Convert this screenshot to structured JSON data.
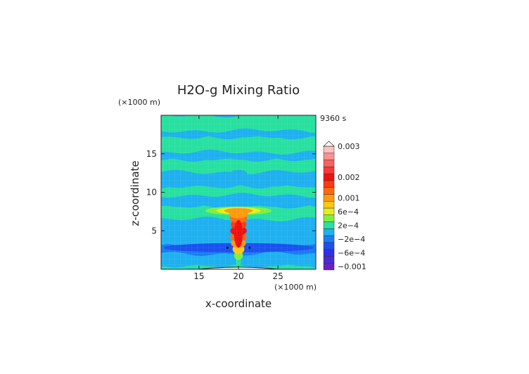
{
  "chart_data": {
    "type": "heatmap",
    "title": "H2O-g Mixing Ratio",
    "xlabel": "x-coordinate",
    "ylabel": "z-coordinate",
    "x_unit": "(×1000 m)",
    "y_unit": "(×1000 m)",
    "time_label": "9360 s",
    "xlim": [
      10.2,
      29.8
    ],
    "ylim": [
      0,
      20
    ],
    "x_ticks": [
      {
        "value": 15,
        "label": "15"
      },
      {
        "value": 20,
        "label": "20"
      },
      {
        "value": 25,
        "label": "25"
      }
    ],
    "y_ticks": [
      {
        "value": 5,
        "label": "5"
      },
      {
        "value": 10,
        "label": "10"
      },
      {
        "value": 15,
        "label": "15"
      }
    ],
    "colorbar": {
      "levels": [
        {
          "color": "#6a1fc0",
          "label": "−0.001"
        },
        {
          "color": "#4a2ad8",
          "label": ""
        },
        {
          "color": "#3030e8",
          "label": "−6e−4"
        },
        {
          "color": "#1c50f0",
          "label": ""
        },
        {
          "color": "#1a7cf2",
          "label": "−2e−4"
        },
        {
          "color": "#1fb0f0",
          "label": ""
        },
        {
          "color": "#28e0a0",
          "label": "2e−4"
        },
        {
          "color": "#7ff040",
          "label": ""
        },
        {
          "color": "#e0f020",
          "label": "6e−4"
        },
        {
          "color": "#ffc818",
          "label": ""
        },
        {
          "color": "#ff9a10",
          "label": "0.001"
        },
        {
          "color": "#ff6a10",
          "label": ""
        },
        {
          "color": "#ff3a10",
          "label": ""
        },
        {
          "color": "#f01010",
          "label": "0.002"
        },
        {
          "color": "#f83838",
          "label": ""
        },
        {
          "color": "#fb6060",
          "label": ""
        },
        {
          "color": "#fd9090",
          "label": ""
        },
        {
          "color": "#ffc0c0",
          "label": "0.003"
        }
      ]
    },
    "bands": [
      {
        "z": [
          0,
          0.5
        ],
        "color": "#28e0a0"
      },
      {
        "z": [
          0.5,
          2.0
        ],
        "color": "#1fb0f0"
      },
      {
        "z": [
          2.0,
          3.2
        ],
        "color": "#1a7cf2"
      },
      {
        "z": [
          3.2,
          6.5
        ],
        "color": "#1fb0f0"
      },
      {
        "z": [
          6.5,
          8.2
        ],
        "color": "#28e0a0"
      },
      {
        "z": [
          8.2,
          9.6
        ],
        "color": "#1fb0f0"
      },
      {
        "z": [
          9.6,
          10.8
        ],
        "color": "#28e0a0"
      },
      {
        "z": [
          10.8,
          12.6
        ],
        "color": "#1fb0f0"
      },
      {
        "z": [
          12.6,
          14.3
        ],
        "color": "#28e0a0"
      },
      {
        "z": [
          14.3,
          15.2
        ],
        "color": "#1fb0f0"
      },
      {
        "z": [
          15.2,
          17.2
        ],
        "color": "#28e0a0"
      },
      {
        "z": [
          17.2,
          18.0
        ],
        "color": "#1fb0f0"
      },
      {
        "z": [
          18.0,
          20.0
        ],
        "color": "#28e0a0"
      }
    ],
    "features": [
      {
        "name": "low-level-dry-band",
        "x": 20,
        "z": 2.8,
        "rx": 9.5,
        "rz": 0.6,
        "color": "#1c50f0"
      },
      {
        "name": "anvil-outflow-wide",
        "x": 20,
        "z": 7.6,
        "rx": 4.2,
        "rz": 0.55,
        "color": "#7ff040"
      },
      {
        "name": "anvil-outflow-core",
        "x": 20,
        "z": 7.6,
        "rx": 2.8,
        "rz": 0.45,
        "color": "#e0f020"
      },
      {
        "name": "anvil-outflow-warm",
        "x": 20,
        "z": 7.6,
        "rx": 1.8,
        "rz": 0.35,
        "color": "#ff9a10"
      },
      {
        "name": "anvil-outflow-hot",
        "x": 20,
        "z": 7.4,
        "rx": 0.9,
        "rz": 0.3,
        "color": "#ff3a10"
      },
      {
        "name": "mid-level-blue-cap",
        "x": 20,
        "z": 12.4,
        "rx": 1.1,
        "rz": 0.5,
        "color": "#1fb0f0"
      }
    ],
    "plume": [
      {
        "z": 1.0,
        "w": 0.35,
        "color": "#28e0a0"
      },
      {
        "z": 1.8,
        "w": 0.55,
        "color": "#7ff040"
      },
      {
        "z": 2.6,
        "w": 0.75,
        "color": "#ffc818"
      },
      {
        "z": 3.4,
        "w": 0.95,
        "color": "#ff9a10"
      },
      {
        "z": 4.2,
        "w": 1.05,
        "color": "#ff6a10"
      },
      {
        "z": 5.0,
        "w": 1.05,
        "color": "#f01010"
      },
      {
        "z": 5.8,
        "w": 1.0,
        "color": "#ff3a10"
      },
      {
        "z": 6.6,
        "w": 1.1,
        "color": "#ff6a10"
      },
      {
        "z": 7.2,
        "w": 1.2,
        "color": "#ff9a10"
      }
    ]
  }
}
